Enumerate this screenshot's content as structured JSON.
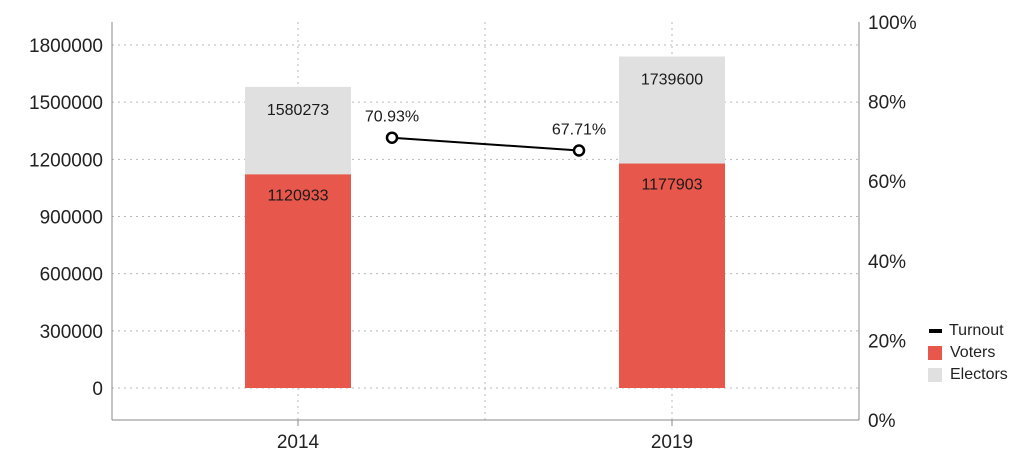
{
  "chart_data": {
    "type": "bar",
    "categories": [
      "2014",
      "2019"
    ],
    "series": [
      {
        "name": "Voters",
        "kind": "bar",
        "axis": "left",
        "values": [
          1120933,
          1177903
        ],
        "color": "#e8574b",
        "labels": [
          "1120933",
          "1177903"
        ]
      },
      {
        "name": "Electors",
        "kind": "bar",
        "axis": "left",
        "values": [
          1580273,
          1739600
        ],
        "color": "#e0e0e0",
        "labels": [
          "1580273",
          "1739600"
        ]
      },
      {
        "name": "Turnout",
        "kind": "line",
        "axis": "right",
        "values": [
          70.93,
          67.71
        ],
        "color": "#000000",
        "labels": [
          "70.93%",
          "67.71%"
        ]
      }
    ],
    "y_left": {
      "ticks": [
        0,
        300000,
        600000,
        900000,
        1200000,
        1500000,
        1800000
      ],
      "tick_labels": [
        "0",
        "300000",
        "600000",
        "900000",
        "1200000",
        "1500000",
        "1800000"
      ],
      "ylim": [
        0,
        1800000
      ]
    },
    "y_right": {
      "ticks": [
        0,
        20,
        40,
        60,
        80,
        100
      ],
      "tick_labels": [
        "0%",
        "20%",
        "40%",
        "60%",
        "80%",
        "100%"
      ],
      "ylim": [
        0,
        100
      ]
    },
    "grid": true,
    "legend": {
      "placement": "bottom-right",
      "items": [
        {
          "label": "Turnout",
          "marker": "line",
          "color": "#000000"
        },
        {
          "label": "Voters",
          "marker": "box",
          "color": "#e8574b"
        },
        {
          "label": "Electors",
          "marker": "box",
          "color": "#e0e0e0"
        }
      ]
    }
  }
}
